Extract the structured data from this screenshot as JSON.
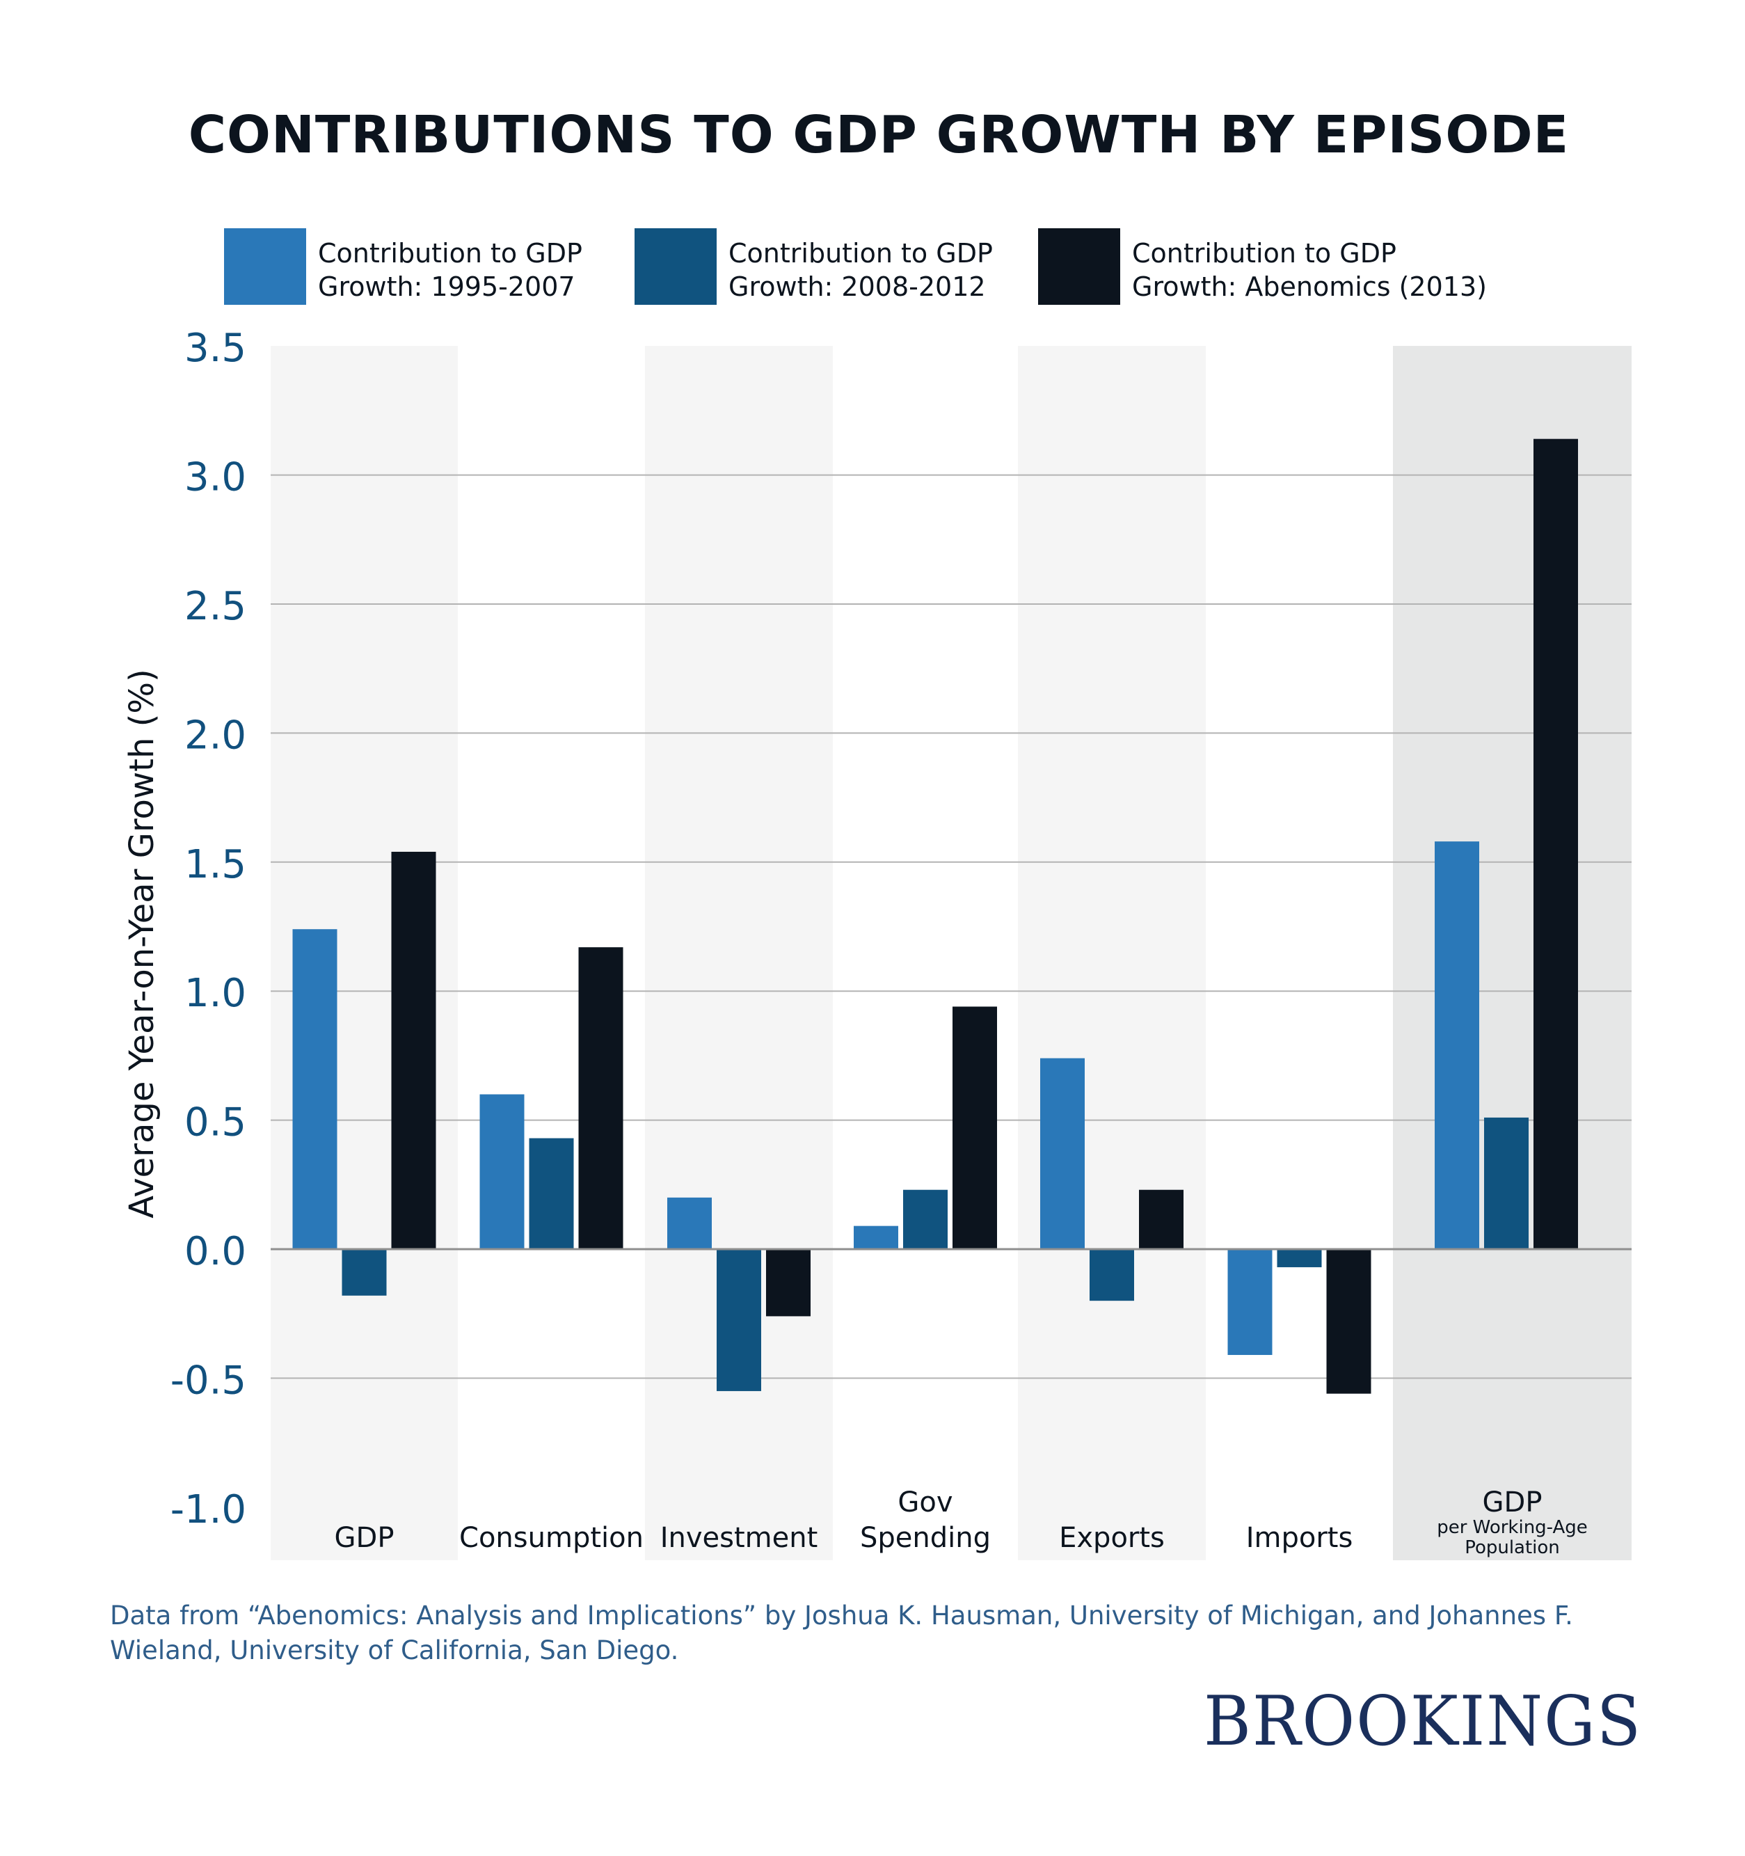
{
  "chart_data": {
    "type": "bar",
    "title": "CONTRIBUTIONS TO GDP GROWTH BY EPISODE",
    "xlabel": "",
    "ylabel": "Average Year-on-Year Growth (%)",
    "ylim": [
      -1.0,
      3.5
    ],
    "yticks": [
      3.5,
      3.0,
      2.5,
      2.0,
      1.5,
      1.0,
      0.5,
      0.0,
      -0.5,
      -1.0
    ],
    "ytick_labels": [
      "3.5",
      "3.0",
      "2.5",
      "2.0",
      "1.5",
      "1.0",
      "0.5",
      "0.0",
      "-0.5",
      "-1.0"
    ],
    "grid": true,
    "legend_position": "top",
    "categories": [
      {
        "lines": [
          "GDP"
        ]
      },
      {
        "lines": [
          "Consumption"
        ]
      },
      {
        "lines": [
          "Investment"
        ]
      },
      {
        "lines": [
          "Gov",
          "Spending"
        ]
      },
      {
        "lines": [
          "Exports"
        ]
      },
      {
        "lines": [
          "Imports"
        ]
      },
      {
        "lines": [
          "GDP"
        ],
        "sublines": [
          "per Working-Age",
          "Population"
        ]
      }
    ],
    "category_names": [
      "GDP",
      "Consumption",
      "Investment",
      "Gov Spending",
      "Exports",
      "Imports",
      "GDP per Working-Age Population"
    ],
    "series": [
      {
        "name": "Contribution to GDP Growth: 1995-2007",
        "legend_lines": [
          "Contribution to GDP",
          "Growth: 1995-2007"
        ],
        "color": "#2a78b8",
        "values": [
          1.24,
          0.6,
          0.2,
          0.09,
          0.74,
          -0.41,
          1.58
        ]
      },
      {
        "name": "Contribution to GDP Growth: 2008-2012",
        "legend_lines": [
          "Contribution to GDP",
          "Growth: 2008-2012"
        ],
        "color": "#10537f",
        "values": [
          -0.18,
          0.43,
          -0.55,
          0.23,
          -0.2,
          -0.07,
          0.51
        ]
      },
      {
        "name": "Contribution to GDP Growth: Abenomics (2013)",
        "legend_lines": [
          "Contribution to GDP",
          "Growth: Abenomics (2013)"
        ],
        "color": "#0c141e",
        "values": [
          1.54,
          1.17,
          -0.26,
          0.94,
          0.23,
          -0.56,
          3.14
        ]
      }
    ],
    "column_shading": [
      "#f5f5f5",
      "#ffffff",
      "#f5f5f5",
      "#ffffff",
      "#f5f5f5",
      "#ffffff",
      "#e6e7e7"
    ]
  },
  "footnote": {
    "line1": "Data from “Abenomics: Analysis and Implications” by Joshua K. Hausman, University of Michigan, and Johannes F.",
    "line2": "Wieland, University of California, San Diego."
  },
  "brand": {
    "logo_text": "BROOKINGS"
  }
}
